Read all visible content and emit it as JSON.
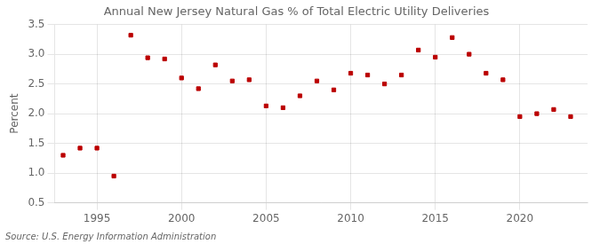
{
  "chart_data": {
    "type": "scatter",
    "title": "Annual New Jersey Natural Gas % of Total Electric Utility Deliveries",
    "ylabel": "Percent",
    "annotation": "Source: U.S. Energy Information Administration",
    "x": [
      1993,
      1994,
      1995,
      1996,
      1997,
      1998,
      1999,
      2000,
      2001,
      2002,
      2003,
      2004,
      2005,
      2006,
      2007,
      2008,
      2009,
      2010,
      2011,
      2012,
      2013,
      2014,
      2015,
      2016,
      2017,
      2018,
      2019,
      2020,
      2021,
      2022,
      2023
    ],
    "values": [
      1.3,
      1.42,
      1.42,
      0.95,
      3.32,
      2.94,
      2.92,
      2.6,
      2.42,
      2.82,
      2.55,
      2.57,
      2.13,
      2.1,
      2.3,
      2.55,
      2.4,
      2.68,
      2.65,
      2.5,
      2.65,
      3.07,
      2.95,
      3.28,
      3.0,
      2.68,
      2.57,
      1.95,
      2.0,
      2.07,
      1.95
    ],
    "color": "#bb0000",
    "marker": "square",
    "xlim": [
      1992.5,
      2024
    ],
    "xticks": [
      1995,
      2000,
      2005,
      2010,
      2015,
      2020
    ],
    "ylim": [
      0.5,
      3.5
    ],
    "yticks": [
      0.5,
      {
        "value": 1.0,
        "label": "1.0"
      },
      1.5,
      {
        "value": 2.0,
        "label": "2.0"
      },
      2.5,
      {
        "value": 3.0,
        "label": "3.0"
      },
      3.5
    ],
    "grid": true
  }
}
